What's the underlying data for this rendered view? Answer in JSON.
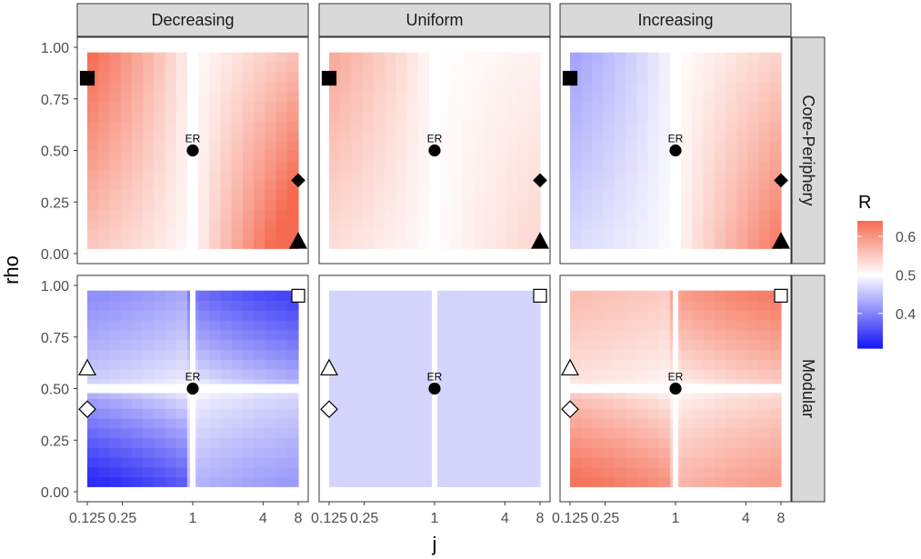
{
  "chart_data": {
    "type": "heatmap",
    "xlabel": "j",
    "ylabel": "rho",
    "x_scale": "log2",
    "xlim": [
      0.125,
      8
    ],
    "ylim": [
      0,
      1
    ],
    "x_ticks": [
      {
        "value": 0.125,
        "label": "0.125"
      },
      {
        "value": 0.25,
        "label": "0.25"
      },
      {
        "value": 1,
        "label": "1"
      },
      {
        "value": 4,
        "label": "4"
      },
      {
        "value": 8,
        "label": "8"
      }
    ],
    "y_ticks": [
      {
        "value": 0,
        "label": "0.00"
      },
      {
        "value": 0.25,
        "label": "0.25"
      },
      {
        "value": 0.5,
        "label": "0.50"
      },
      {
        "value": 0.75,
        "label": "0.75"
      },
      {
        "value": 1,
        "label": "1.00"
      }
    ],
    "col_facets": [
      "Decreasing",
      "Uniform",
      "Increasing"
    ],
    "row_facets": [
      "Core-Periphery",
      "Modular"
    ],
    "legend": {
      "title": "R",
      "placement": "right",
      "low_color": "#1515f5",
      "mid_color": "#ffffff",
      "high_color": "#f56a50",
      "midpoint": 0.5,
      "range": [
        0.31,
        0.64
      ],
      "ticks": [
        {
          "value": 0.4,
          "label": "0.4"
        },
        {
          "value": 0.5,
          "label": "0.5"
        },
        {
          "value": 0.6,
          "label": "0.6"
        }
      ]
    },
    "grid": {
      "x_cells": 19,
      "y_cells": 20,
      "x_range": [
        0.125,
        8
      ],
      "y_range": [
        0.025,
        0.975
      ]
    },
    "heat_model": {
      "Core-Periphery": {
        "Decreasing": {
          "sides": "left-right",
          "left_max": 0.145,
          "right_max": 0.185,
          "left_peak": "upper-left",
          "right_peak": "lower-right"
        },
        "Uniform": {
          "sides": "left-right",
          "left_max": 0.085,
          "right_max": 0.04,
          "left_peak": "upper-left",
          "right_peak": "lower-right"
        },
        "Increasing": {
          "sides": "left-right",
          "left_max": -0.08,
          "right_max": 0.13,
          "left_peak": "upper-left",
          "right_peak": "lower-right"
        }
      },
      "Modular": {
        "Decreasing": {
          "sides": "quadrants",
          "upper_left": -0.09,
          "upper_right": -0.15,
          "lower_left": -0.17,
          "lower_right": -0.08
        },
        "Uniform": {
          "sides": "flat",
          "value": -0.035
        },
        "Increasing": {
          "sides": "quadrants",
          "upper_left": 0.06,
          "upper_right": 0.12,
          "lower_left": 0.13,
          "lower_right": 0.09
        }
      }
    },
    "markers": {
      "Core-Periphery": [
        {
          "shape": "circle",
          "filled": true,
          "j": 1,
          "rho": 0.5,
          "label": "ER"
        },
        {
          "shape": "square",
          "filled": true,
          "j": 0.125,
          "rho": 0.85
        },
        {
          "shape": "diamond",
          "filled": true,
          "j": 8,
          "rho": 0.355
        },
        {
          "shape": "triangle",
          "filled": true,
          "j": 8,
          "rho": 0.06
        }
      ],
      "Modular": [
        {
          "shape": "circle",
          "filled": true,
          "j": 1,
          "rho": 0.5,
          "label": "ER"
        },
        {
          "shape": "square",
          "filled": false,
          "j": 8,
          "rho": 0.95
        },
        {
          "shape": "triangle",
          "filled": false,
          "j": 0.125,
          "rho": 0.6
        },
        {
          "shape": "diamond",
          "filled": false,
          "j": 0.125,
          "rho": 0.4
        }
      ]
    },
    "vertical_gap_at_j": 1,
    "horizontal_gap_at_rho": 0.5
  }
}
